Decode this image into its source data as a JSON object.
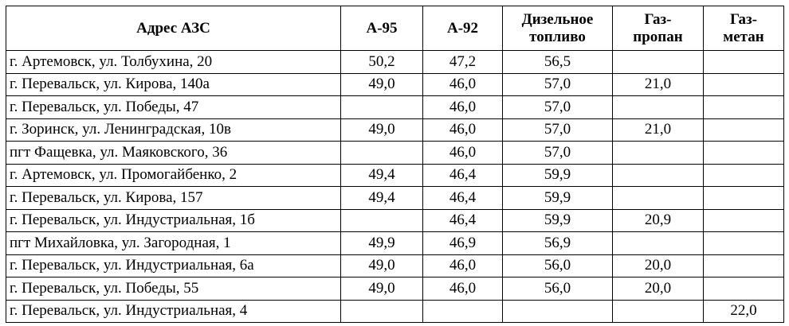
{
  "table": {
    "header": [
      "Адрес АЗС",
      "А-95",
      "А-92",
      "Дизельное\nтопливо",
      "Газ-\nпропан",
      "Газ-\nметан"
    ],
    "rows": [
      [
        "г. Артемовск, ул. Толбухина, 20",
        "50,2",
        "47,2",
        "56,5",
        null,
        null
      ],
      [
        "г. Перевальск, ул. Кирова, 140а",
        "49,0",
        "46,0",
        "57,0",
        "21,0",
        null
      ],
      [
        "г. Перевальск,  ул. Победы, 47",
        null,
        "46,0",
        "57,0",
        null,
        null
      ],
      [
        "г. Зоринск, ул. Ленинградская, 10в",
        "49,0",
        "46,0",
        "57,0",
        "21,0",
        null
      ],
      [
        "пгт Фащевка, ул. Маяковского, 36",
        null,
        "46,0",
        "57,0",
        null,
        null
      ],
      [
        "г. Артемовск, ул. Промогайбенко, 2",
        "49,4",
        "46,4",
        "59,9",
        null,
        null
      ],
      [
        "г. Перевальск, ул. Кирова, 157",
        "49,4",
        "46,4",
        "59,9",
        null,
        null
      ],
      [
        "г. Перевальск, ул. Индустриальная, 1б",
        null,
        "46,4",
        "59,9",
        "20,9",
        null
      ],
      [
        "пгт Михайловка, ул. Загородная, 1",
        "49,9",
        "46,9",
        "56,9",
        null,
        null
      ],
      [
        "г. Перевальск, ул. Индустриальная, 6а",
        "49,0",
        "46,0",
        "56,0",
        "20,0",
        null
      ],
      [
        "г. Перевальск, ул. Победы, 55",
        "49,0",
        "46,0",
        "56,0",
        "20,0",
        null
      ],
      [
        "г. Перевальск, ул. Индустриальная, 4",
        null,
        null,
        null,
        null,
        "22,0"
      ]
    ]
  }
}
